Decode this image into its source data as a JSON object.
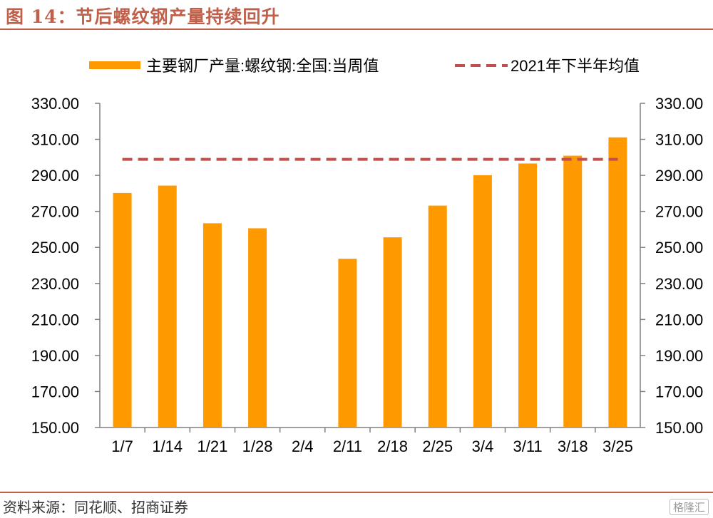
{
  "header": {
    "title": "图 14：节后螺纹钢产量持续回升"
  },
  "footer": {
    "source": "资料来源：同花顺、招商证券",
    "watermark": "格隆汇"
  },
  "colors": {
    "bar": "#FF9900",
    "avg_line": "#C0504D",
    "accent": "#C0604A"
  },
  "chart_data": {
    "type": "bar",
    "title": "",
    "xlabel": "",
    "ylabel": "",
    "categories": [
      "1/7",
      "1/14",
      "1/21",
      "1/28",
      "2/4",
      "2/11",
      "2/18",
      "2/25",
      "3/4",
      "3/11",
      "3/18",
      "3/25"
    ],
    "ylim": [
      150,
      330
    ],
    "y_ticks": [
      "150.00",
      "170.00",
      "190.00",
      "210.00",
      "230.00",
      "250.00",
      "270.00",
      "290.00",
      "310.00",
      "330.00"
    ],
    "series": [
      {
        "name": "主要钢厂产量:螺纹钢:全国:当周值",
        "type": "bar",
        "values": [
          280.2,
          284.3,
          263.4,
          260.6,
          null,
          243.7,
          255.6,
          273.2,
          290.1,
          296.6,
          300.9,
          311.1
        ]
      },
      {
        "name": "2021年下半年均值",
        "type": "line",
        "style": "dashed",
        "value": 298.9
      }
    ],
    "legend_position": "top",
    "grid": false
  }
}
